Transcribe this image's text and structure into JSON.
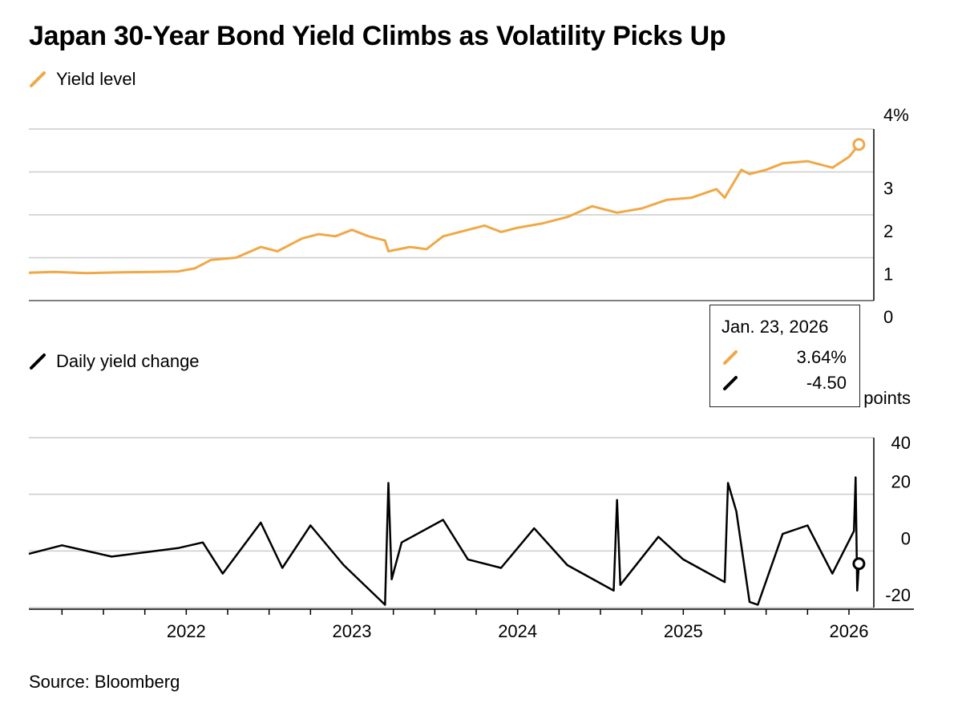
{
  "title": "Japan 30-Year Bond Yield Climbs as Volatility Picks Up",
  "source": "Source: Bloomberg",
  "colors": {
    "yield": "#f0a846",
    "change": "#000000",
    "grid": "#cccccc",
    "axis": "#000000"
  },
  "tooltip": {
    "date": "Jan. 23, 2026",
    "yield_value": "3.64%",
    "change_value": "-4.50"
  },
  "chart_data": [
    {
      "type": "line",
      "title": "Yield level",
      "legend": "Yield level",
      "unit": "%",
      "ylim": [
        0,
        4
      ],
      "yticks": [
        0,
        1,
        2,
        3,
        4
      ],
      "ytick_labels": [
        "0",
        "1",
        "2",
        "3",
        "4%"
      ],
      "xlim": [
        2021.05,
        2026.15
      ],
      "series": [
        {
          "name": "Yield level",
          "x": [
            2021.05,
            2021.2,
            2021.4,
            2021.6,
            2021.8,
            2021.95,
            2022.05,
            2022.15,
            2022.3,
            2022.45,
            2022.55,
            2022.7,
            2022.8,
            2022.9,
            2023.0,
            2023.1,
            2023.2,
            2023.22,
            2023.35,
            2023.45,
            2023.55,
            2023.65,
            2023.8,
            2023.9,
            2024.0,
            2024.15,
            2024.3,
            2024.45,
            2024.6,
            2024.75,
            2024.9,
            2025.05,
            2025.2,
            2025.25,
            2025.35,
            2025.4,
            2025.5,
            2025.6,
            2025.75,
            2025.9,
            2026.0,
            2026.06
          ],
          "values": [
            0.65,
            0.67,
            0.64,
            0.66,
            0.67,
            0.68,
            0.75,
            0.95,
            1.0,
            1.25,
            1.15,
            1.45,
            1.55,
            1.5,
            1.65,
            1.5,
            1.4,
            1.15,
            1.25,
            1.2,
            1.5,
            1.6,
            1.75,
            1.6,
            1.7,
            1.8,
            1.95,
            2.2,
            2.05,
            2.15,
            2.35,
            2.4,
            2.6,
            2.4,
            3.05,
            2.95,
            3.05,
            3.2,
            3.25,
            3.1,
            3.35,
            3.64
          ]
        }
      ]
    },
    {
      "type": "line",
      "title": "Daily yield change",
      "legend": "Daily yield change",
      "unit": "points",
      "ylim": [
        -20,
        40
      ],
      "yticks": [
        -20,
        0,
        20,
        40
      ],
      "ytick_labels": [
        "-20",
        "0",
        "20",
        "40"
      ],
      "xlim": [
        2021.05,
        2026.15
      ],
      "xticks": [
        2022,
        2023,
        2024,
        2025,
        2026
      ],
      "xtick_labels": [
        "2022",
        "2023",
        "2024",
        "2025",
        "2026"
      ],
      "minor_xticks": [
        2021.25,
        2021.5,
        2021.75,
        2022.25,
        2022.5,
        2022.75,
        2023.25,
        2023.5,
        2023.75,
        2024.25,
        2024.5,
        2024.75,
        2025.25,
        2025.5,
        2025.75
      ],
      "series": [
        {
          "name": "Daily yield change",
          "x": [
            2021.05,
            2021.25,
            2021.55,
            2021.95,
            2022.1,
            2022.22,
            2022.45,
            2022.58,
            2022.75,
            2022.95,
            2023.2,
            2023.22,
            2023.24,
            2023.3,
            2023.55,
            2023.7,
            2023.9,
            2024.1,
            2024.3,
            2024.58,
            2024.6,
            2024.62,
            2024.85,
            2025.0,
            2025.25,
            2025.27,
            2025.32,
            2025.4,
            2025.45,
            2025.6,
            2025.75,
            2025.9,
            2026.03,
            2026.04,
            2026.05,
            2026.06
          ],
          "values": [
            -1,
            2,
            -2,
            1,
            3,
            -8,
            10,
            -6,
            9,
            -5,
            -19,
            24,
            -10,
            3,
            11,
            -3,
            -6,
            8,
            -5,
            -14,
            18,
            -12,
            5,
            -3,
            -11,
            24,
            14,
            -18,
            -19,
            6,
            9,
            -8,
            7,
            26,
            -14,
            -4.5
          ]
        }
      ]
    }
  ]
}
